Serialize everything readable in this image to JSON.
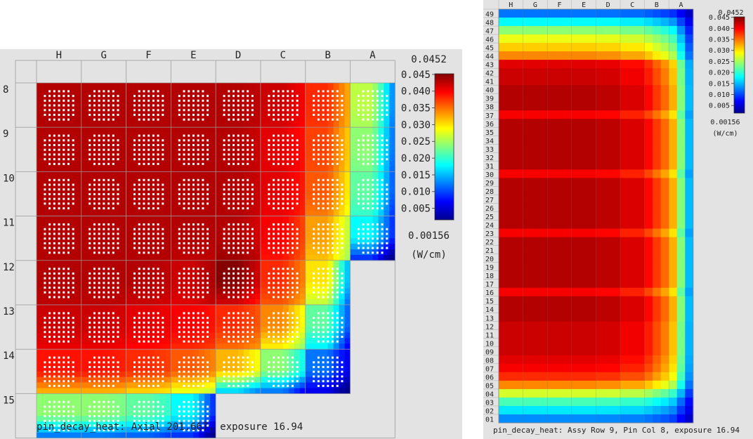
{
  "colorbar_stops": [
    "#00008f",
    "#0000ff",
    "#0080ff",
    "#00ffff",
    "#80ff80",
    "#ffff00",
    "#ff8000",
    "#ff0000",
    "#800000"
  ],
  "left_panel": {
    "footer": "pin_decay_heat: Axial 201.667, exposure 16.94",
    "legend": {
      "max": "0.0452",
      "min": "0.00156",
      "unit": "(W/cm)",
      "ticks": [
        "0.045",
        "0.040",
        "0.035",
        "0.030",
        "0.025",
        "0.020",
        "0.015",
        "0.010",
        "0.005"
      ]
    }
  },
  "right_panel": {
    "footer": "pin_decay_heat: Assy Row 9, Pin Col 8, exposure 16.94",
    "legend": {
      "max": "0.0452",
      "min": "0.00156",
      "unit": "(W/cm)",
      "ticks": [
        "0.045",
        "0.040",
        "0.035",
        "0.030",
        "0.025",
        "0.020",
        "0.015",
        "0.010",
        "0.005"
      ]
    }
  },
  "chart_data": [
    {
      "type": "heatmap",
      "title": "pin_decay_heat: Axial 201.667, exposure 16.94",
      "columns": [
        "H",
        "G",
        "F",
        "E",
        "D",
        "C",
        "B",
        "A"
      ],
      "rows": [
        "8",
        "9",
        "10",
        "11",
        "12",
        "13",
        "14",
        "15"
      ],
      "values": [
        [
          0.043,
          0.043,
          0.043,
          0.043,
          0.043,
          0.042,
          0.038,
          0.026
        ],
        [
          0.043,
          0.043,
          0.043,
          0.043,
          0.043,
          0.041,
          0.037,
          0.024
        ],
        [
          0.043,
          0.043,
          0.043,
          0.043,
          0.043,
          0.041,
          0.036,
          0.022
        ],
        [
          0.043,
          0.043,
          0.043,
          0.043,
          0.043,
          0.04,
          0.033,
          0.018
        ],
        [
          0.043,
          0.043,
          0.043,
          0.042,
          0.045,
          0.038,
          0.03,
          null
        ],
        [
          0.042,
          0.042,
          0.041,
          0.04,
          0.038,
          0.034,
          0.022,
          null
        ],
        [
          0.039,
          0.039,
          0.038,
          0.036,
          0.032,
          0.024,
          0.012,
          null
        ],
        [
          0.024,
          0.024,
          0.022,
          0.018,
          null,
          null,
          null,
          null
        ]
      ],
      "colorbar": {
        "min": 0.00156,
        "max": 0.0452,
        "unit": "(W/cm)"
      }
    },
    {
      "type": "heatmap",
      "title": "pin_decay_heat: Assy Row 9, Pin Col 8, exposure 16.94",
      "columns": [
        "H",
        "G",
        "F",
        "E",
        "D",
        "C",
        "B",
        "A"
      ],
      "rows": [
        "49",
        "48",
        "47",
        "46",
        "45",
        "44",
        "43",
        "42",
        "41",
        "40",
        "39",
        "38",
        "37",
        "36",
        "35",
        "34",
        "33",
        "32",
        "31",
        "30",
        "29",
        "28",
        "27",
        "26",
        "25",
        "24",
        "23",
        "22",
        "21",
        "20",
        "19",
        "18",
        "17",
        "16",
        "15",
        "14",
        "13",
        "12",
        "11",
        "10",
        "09",
        "08",
        "07",
        "06",
        "05",
        "04",
        "03",
        "02",
        "01"
      ],
      "column_profile": [
        1.0,
        1.0,
        1.0,
        1.0,
        0.99,
        0.96,
        0.87,
        0.55
      ],
      "row_values": [
        0.012,
        0.018,
        0.024,
        0.028,
        0.031,
        0.034,
        0.041,
        0.042,
        0.042,
        0.043,
        0.043,
        0.043,
        0.04,
        0.043,
        0.043,
        0.043,
        0.043,
        0.043,
        0.043,
        0.04,
        0.043,
        0.043,
        0.043,
        0.043,
        0.043,
        0.043,
        0.04,
        0.043,
        0.043,
        0.043,
        0.043,
        0.043,
        0.043,
        0.04,
        0.043,
        0.043,
        0.043,
        0.042,
        0.042,
        0.042,
        0.042,
        0.041,
        0.04,
        0.038,
        0.034,
        0.027,
        0.021,
        0.017,
        0.013
      ],
      "colorbar": {
        "min": 0.00156,
        "max": 0.0452,
        "unit": "(W/cm)"
      }
    }
  ]
}
